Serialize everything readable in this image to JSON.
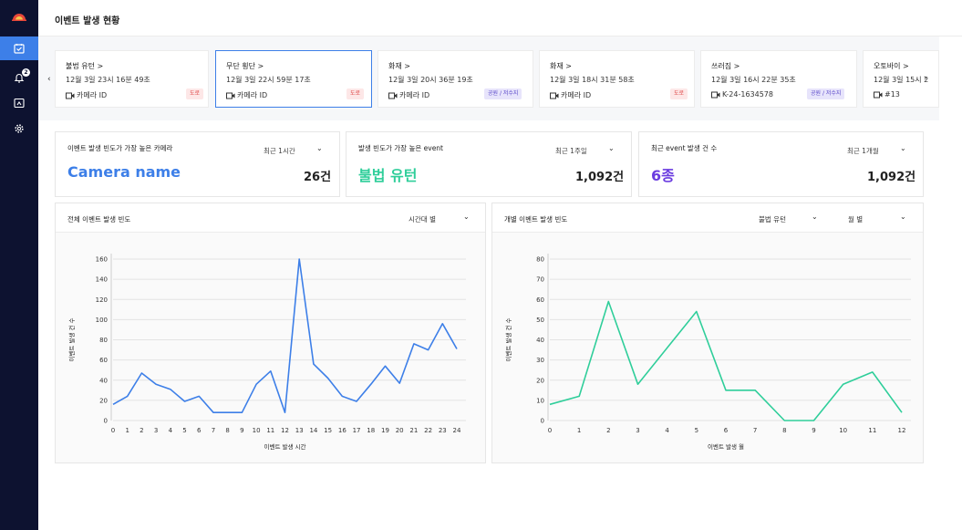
{
  "page": {
    "title": "이벤트 발생 현황"
  },
  "sidebar": {
    "badge_count": "2"
  },
  "event_cards": [
    {
      "title": "불법 유턴 >",
      "datetime": "12월 3일 23시 16분 49초",
      "camera": "카메라 ID",
      "tag": "도로",
      "tag_type": "road"
    },
    {
      "title": "무단 횡단 >",
      "datetime": "12월 3일 22시 59분 17초",
      "camera": "카메라 ID",
      "tag": "도로",
      "tag_type": "road"
    },
    {
      "title": "화재 >",
      "datetime": "12월 3일 20시 36분 19초",
      "camera": "카메라 ID",
      "tag": "공원 / 저수지",
      "tag_type": "park"
    },
    {
      "title": "화재 >",
      "datetime": "12월 3일 18시 31분 58초",
      "camera": "카메라 ID",
      "tag": "도로",
      "tag_type": "road"
    },
    {
      "title": "쓰러짐 >",
      "datetime": "12월 3일 16시 22분 35초",
      "camera": "K-24-1634578",
      "tag": "공원 / 저수지",
      "tag_type": "park"
    },
    {
      "title": "오토바이 >",
      "datetime": "12월 3일 15시 2",
      "camera": "#13",
      "tag": "",
      "tag_type": ""
    }
  ],
  "stats": {
    "top_camera": {
      "label": "이벤트 발생 빈도가 가장 높은 카메라",
      "period": "최근 1시간",
      "value": "Camera name",
      "count": "26건",
      "color": "#3d7fe8"
    },
    "top_event": {
      "label": "발생 빈도가 가장 높은 event",
      "period": "최근 1주일",
      "value": "불법 유턴",
      "count": "1,092건",
      "color": "#2fce9a"
    },
    "recent_events": {
      "label": "최근 event 발생 건 수",
      "period": "최근 1개월",
      "value": "6종",
      "count": "1,092건",
      "color": "#6a3ce0"
    }
  },
  "panels": {
    "total": {
      "title": "전체 이벤트 발생 빈도",
      "option": "시간대 별"
    },
    "individual": {
      "title": "개별 이벤트 발생 빈도",
      "option1": "불법 유턴",
      "option2": "월 별"
    }
  },
  "chart_data": [
    {
      "type": "line",
      "x": [
        0,
        1,
        2,
        3,
        4,
        5,
        6,
        7,
        8,
        9,
        10,
        11,
        12,
        13,
        14,
        15,
        16,
        17,
        18,
        19,
        20,
        21,
        22,
        23,
        24
      ],
      "series": [
        {
          "values": [
            16,
            24,
            47,
            36,
            31,
            19,
            24,
            8,
            8,
            8,
            36,
            49,
            8,
            160,
            56,
            42,
            24,
            19,
            36,
            54,
            37,
            76,
            70,
            96,
            71
          ]
        }
      ],
      "xlabel": "이벤트 발생 시간",
      "ylabel": "이벤트 발생 건 수",
      "ylim": [
        0,
        160
      ],
      "yticks": [
        0,
        20,
        40,
        60,
        80,
        100,
        120,
        140,
        160
      ],
      "color": "#3d7fe8",
      "grid": true
    },
    {
      "type": "line",
      "x": [
        0,
        1,
        2,
        3,
        4,
        5,
        6,
        7,
        8,
        9,
        10,
        11,
        12
      ],
      "series": [
        {
          "values": [
            8,
            12,
            59,
            18,
            36,
            54,
            15,
            15,
            0,
            0,
            18,
            24,
            4
          ]
        }
      ],
      "xlabel": "이벤트 발생 월",
      "ylabel": "이벤트 발생 건 수",
      "ylim": [
        0,
        80
      ],
      "yticks": [
        0,
        10,
        20,
        30,
        40,
        50,
        60,
        70,
        80
      ],
      "color": "#2fce9a",
      "grid": true
    }
  ]
}
